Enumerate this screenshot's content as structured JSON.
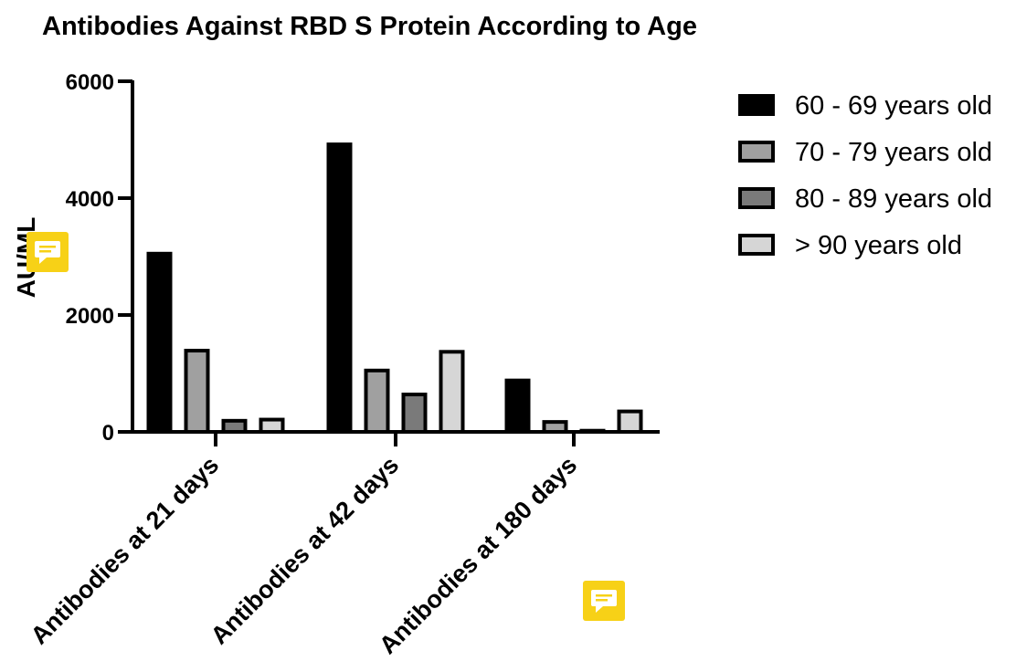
{
  "chart_data": {
    "type": "bar",
    "title": "Antibodies Against RBD S Protein According to Age",
    "xlabel": "",
    "ylabel": "AU/ML",
    "ylim": [
      0,
      6000
    ],
    "yticks": [
      0,
      2000,
      4000,
      6000
    ],
    "categories": [
      "Antibodies at 21 days",
      "Antibodies at 42 days",
      "Antibodies at 180 days"
    ],
    "series": [
      {
        "name": "60 - 69 years old",
        "color": "#000000",
        "values": [
          3050,
          4920,
          880
        ]
      },
      {
        "name": "70 - 79 years old",
        "color": "#a0a0a0",
        "values": [
          1390,
          1050,
          170
        ]
      },
      {
        "name": "80 - 89 years old",
        "color": "#7a7a7a",
        "values": [
          190,
          640,
          20
        ]
      },
      {
        "name": "> 90 years old",
        "color": "#d6d6d6",
        "values": [
          210,
          1370,
          350
        ]
      }
    ],
    "legend_position": "right",
    "grid": false
  },
  "overlay_icons": [
    "comment-icon",
    "comment-icon"
  ],
  "accent_colors": {
    "comment_badge": "#f7d117"
  }
}
